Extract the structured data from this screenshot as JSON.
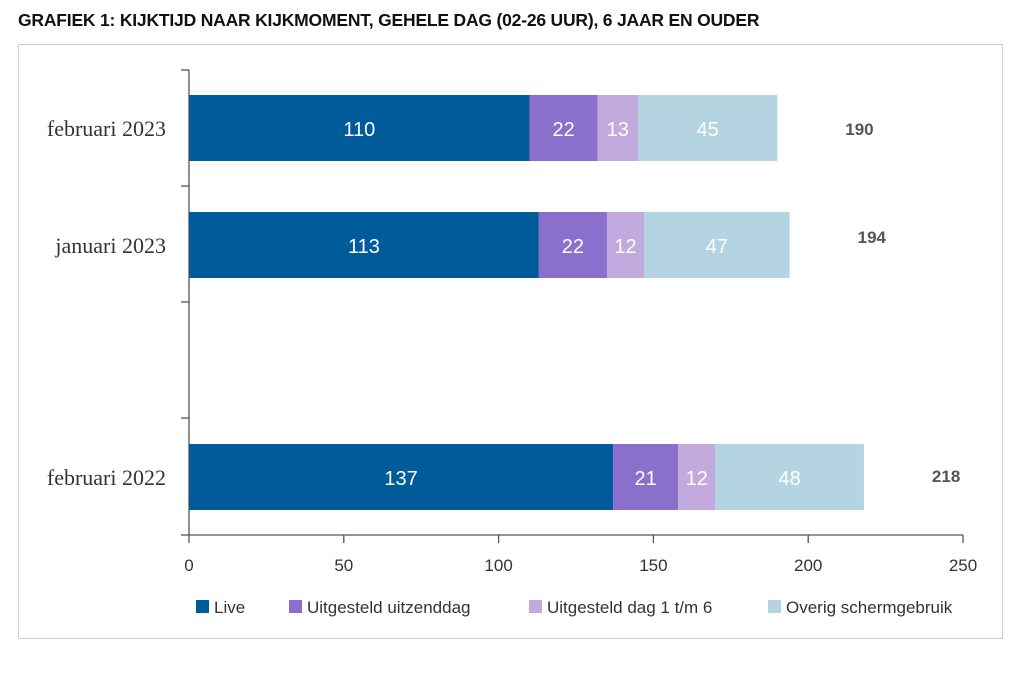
{
  "chart_data": {
    "type": "bar",
    "orientation": "horizontal",
    "stacked": true,
    "title": "GRAFIEK 1: KIJKTIJD NAAR KIJKMOMENT, GEHELE DAG (02-26 UUR), 6 JAAR EN OUDER",
    "categories": [
      "februari 2023",
      "januari 2023",
      "februari 2022"
    ],
    "series": [
      {
        "name": "Live",
        "color": "#005b9a",
        "values": [
          110,
          113,
          137
        ]
      },
      {
        "name": "Uitgesteld uitzenddag",
        "color": "#8a6fcd",
        "values": [
          22,
          22,
          21
        ]
      },
      {
        "name": "Uitgesteld dag 1 t/m 6",
        "color": "#c2a9de",
        "values": [
          13,
          12,
          12
        ]
      },
      {
        "name": "Overig schermgebruik",
        "color": "#b4d4e2",
        "values": [
          45,
          47,
          48
        ]
      }
    ],
    "totals": [
      190,
      194,
      218
    ],
    "xlim": [
      0,
      250
    ],
    "xticks": [
      0,
      50,
      100,
      150,
      200,
      250
    ],
    "xlabel": "",
    "ylabel": "",
    "legend_position": "bottom"
  }
}
